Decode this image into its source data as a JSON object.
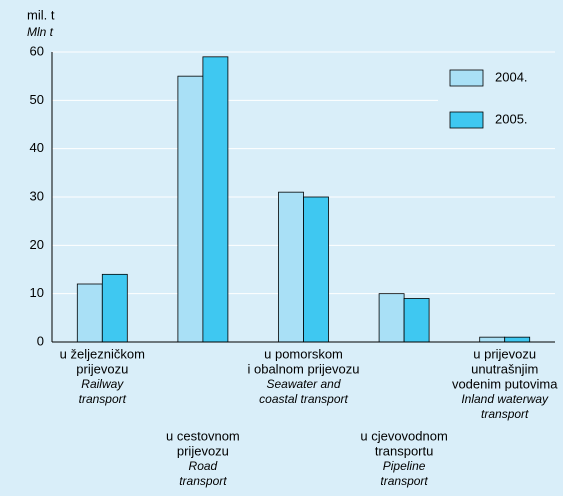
{
  "chart_data": {
    "type": "bar",
    "y_label": "mil. t",
    "y_label_en": "Mln t",
    "categories": [
      [
        "u željezničkom",
        "prijevozu"
      ],
      [
        "u cestovnom",
        "prijevozu"
      ],
      [
        "u pomorskom",
        "i obalnom prijevozu"
      ],
      [
        "u cjevovodnom",
        "transportu"
      ],
      [
        "u prijevozu",
        "unutrašnjim",
        "vodenim putovima"
      ]
    ],
    "categories_en": [
      [
        "Railway",
        "transport"
      ],
      [
        "Road",
        "transport"
      ],
      [
        "Seawater and",
        "coastal transport"
      ],
      [
        "Pipeline",
        "transport"
      ],
      [
        "Inland waterway",
        "transport"
      ]
    ],
    "series": [
      {
        "name": "2004.",
        "color": "#a9e0f6",
        "values": [
          12,
          55,
          31,
          10,
          1
        ]
      },
      {
        "name": "2005.",
        "color": "#3fc8f1",
        "values": [
          14,
          59,
          30,
          9,
          1
        ]
      }
    ],
    "ylim": [
      0,
      60
    ],
    "yticks": [
      0,
      10,
      20,
      30,
      40,
      50,
      60
    ],
    "grid": true
  }
}
